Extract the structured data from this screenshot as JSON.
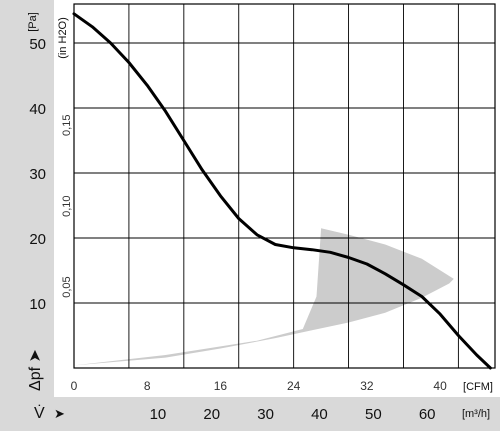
{
  "chart_data": {
    "type": "line",
    "title": "",
    "ylabel_symbol": "Δpf",
    "y_unit": "[Pa]",
    "y2_unit": "(in H2O)",
    "x_symbol": "V̇",
    "x_unit": "[CFM]",
    "x2_unit": "[m³/h]",
    "xlim": [
      0,
      46
    ],
    "ylim": [
      0,
      56
    ],
    "x_ticks": [
      0,
      8,
      16,
      24,
      32,
      40
    ],
    "y_ticks": [
      10,
      20,
      30,
      40,
      50
    ],
    "y2_ticks": [
      "0,05",
      "0,10",
      "0,15"
    ],
    "y2_tick_values": [
      12.45,
      24.9,
      37.35
    ],
    "x2_ticks": [
      "10",
      "20",
      "30",
      "40",
      "50",
      "60"
    ],
    "x2_tick_values": [
      5.89,
      11.77,
      17.66,
      23.54,
      29.43,
      35.31
    ],
    "series": [
      {
        "x": [
          0,
          2,
          4,
          6,
          8,
          10,
          12,
          14,
          16,
          18,
          20,
          22,
          24,
          26,
          28,
          30,
          32,
          34,
          36,
          38,
          40,
          42,
          44,
          45.5
        ],
        "y": [
          54.5,
          52.5,
          50,
          47,
          43.5,
          39.5,
          35,
          30.5,
          26.5,
          23,
          20.5,
          19,
          18.5,
          18.2,
          17.8,
          17,
          16,
          14.5,
          12.8,
          11,
          8.3,
          5,
          2,
          0
        ]
      }
    ],
    "shaded_region": {
      "description_free": true,
      "x": [
        0,
        10,
        20,
        25,
        26.5,
        27,
        30,
        34,
        38,
        41.5,
        41,
        38,
        34,
        30,
        26,
        22,
        16,
        10,
        0
      ],
      "y": [
        0.4,
        2,
        4.2,
        6,
        11,
        21.5,
        20.5,
        19,
        16.8,
        13.7,
        13,
        10.8,
        8.5,
        7,
        5.8,
        4.6,
        3,
        1.6,
        0.4
      ]
    },
    "grid": true,
    "colors": {
      "curve": "#000000",
      "shaded": "#cccccc",
      "panel": "#d9d9d9",
      "grid": "#000000"
    }
  }
}
